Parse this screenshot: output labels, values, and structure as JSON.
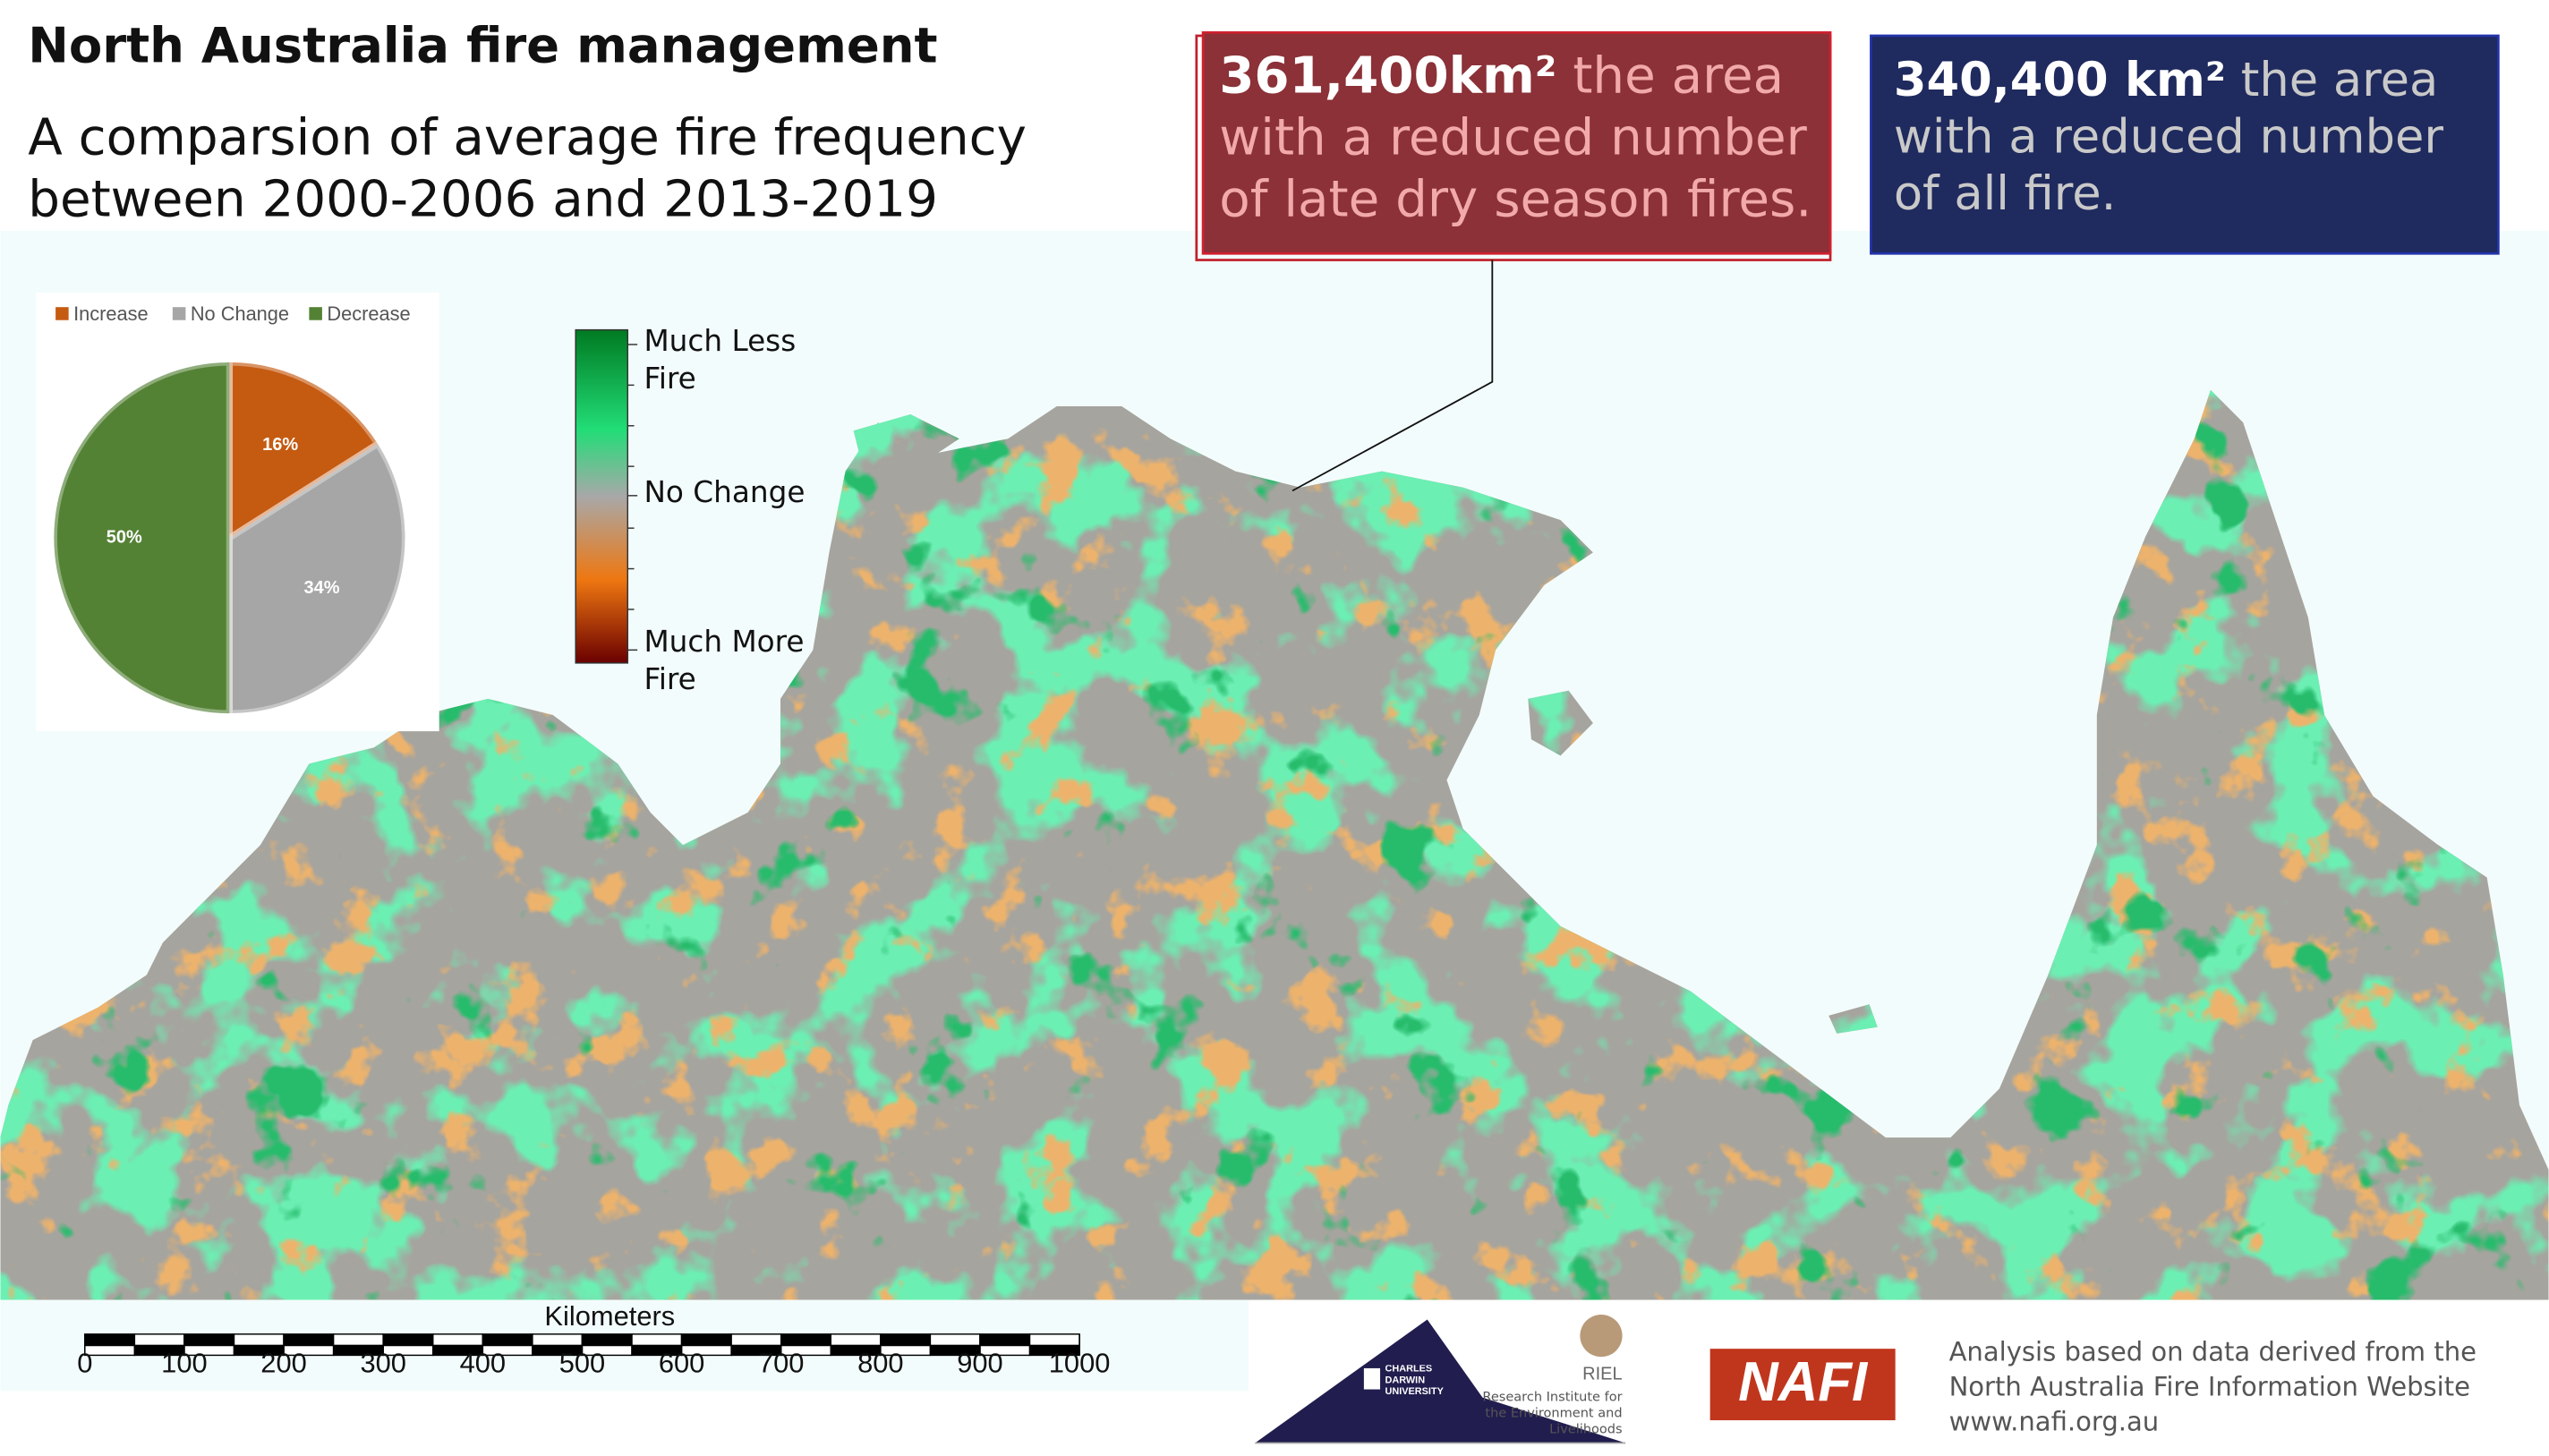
{
  "header": {
    "title": "North Australia fire management",
    "subtitle": "A comparsion of average fire frequency between 2000-2006 and 2013-2019"
  },
  "callouts": [
    {
      "figure": "361,400km²",
      "text": "the area with a reduced number of late dry season fires."
    },
    {
      "figure": "340,400 km²",
      "text": "the area with a reduced number of all fire."
    }
  ],
  "legend": {
    "top": "Much Less Fire",
    "middle": "No Change",
    "bottom": "Much More Fire"
  },
  "chart_data": {
    "type": "pie",
    "categories": [
      "Increase",
      "No Change",
      "Decrease"
    ],
    "values": [
      16,
      34,
      50
    ],
    "value_labels": [
      "16%",
      "34%",
      "50%"
    ],
    "colors": [
      "#c55a11",
      "#a6a6a6",
      "#548235"
    ]
  },
  "scale_bar": {
    "title": "Kilometers",
    "ticks": [
      0,
      100,
      200,
      300,
      400,
      500,
      600,
      700,
      800,
      900,
      1000
    ]
  },
  "footer": {
    "university": "CHARLES DARWIN UNIVERSITY",
    "riel": "RIEL",
    "riel_name": "Research Institute for the Environment and Livelihoods",
    "nafi": "NAFI",
    "credit": [
      "Analysis based on data derived from the",
      "North Australia Fire Information Website",
      "www.nafi.org.au"
    ]
  }
}
